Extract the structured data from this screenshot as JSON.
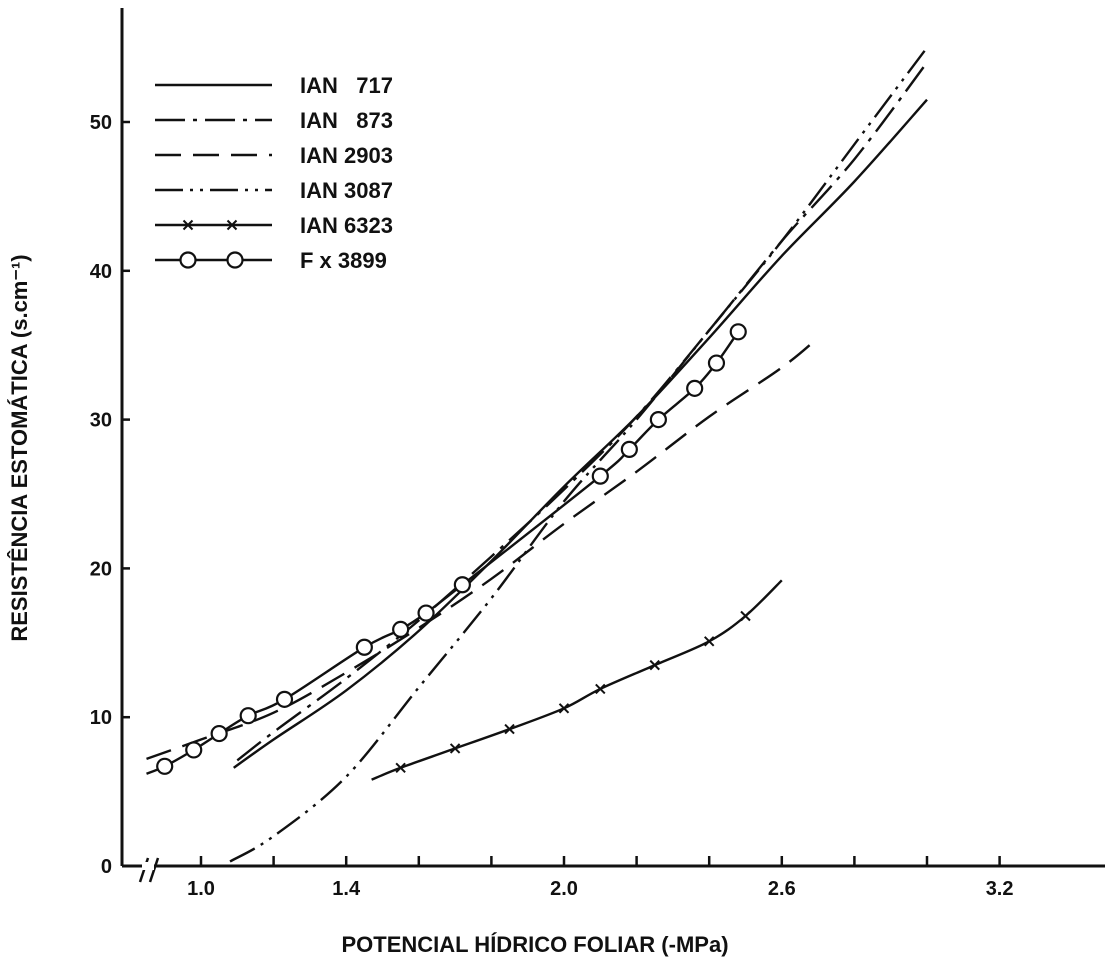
{
  "chart_data": {
    "type": "line",
    "title": "",
    "xlabel": "POTENCIAL HÍDRICO FOLIAR (-MPa)",
    "ylabel": "RESISTÊNCIA ESTOMÁTICA (s.cm⁻¹)",
    "xlim": [
      0.85,
      3.45
    ],
    "ylim": [
      0,
      58
    ],
    "x_axis_break": true,
    "xticks": [
      {
        "value": 1.0,
        "label": "1.0"
      },
      {
        "value": 1.4,
        "label": "1.4"
      },
      {
        "value": 2.0,
        "label": "2.0"
      },
      {
        "value": 2.6,
        "label": "2.6"
      },
      {
        "value": 3.2,
        "label": "3.2"
      }
    ],
    "xminor": [
      1.2,
      1.6,
      1.8,
      2.2,
      2.4,
      2.8,
      3.0
    ],
    "yticks": [
      {
        "value": 0,
        "label": "0"
      },
      {
        "value": 10,
        "label": "10"
      },
      {
        "value": 20,
        "label": "20"
      },
      {
        "value": 30,
        "label": "30"
      },
      {
        "value": 40,
        "label": "40"
      },
      {
        "value": 50,
        "label": "50"
      }
    ],
    "legend_position": "top-left",
    "series": [
      {
        "name": "IAN   717",
        "style": "solid",
        "marker": "none",
        "x": [
          1.09,
          1.2,
          1.4,
          1.6,
          1.8,
          2.0,
          2.2,
          2.4,
          2.6,
          2.8,
          3.0
        ],
        "y": [
          6.6,
          8.5,
          11.8,
          15.8,
          20.5,
          25.5,
          30.2,
          35.5,
          41,
          46,
          51.5
        ]
      },
      {
        "name": "IAN   873",
        "style": "dashdot",
        "marker": "none",
        "x": [
          1.1,
          1.2,
          1.4,
          1.6,
          1.8,
          2.0,
          2.2,
          2.4,
          2.6,
          2.8,
          3.0
        ],
        "y": [
          7.1,
          9.0,
          12.6,
          16.5,
          20.8,
          25.3,
          30.2,
          36.0,
          42.0,
          47.5,
          54
        ]
      },
      {
        "name": "IAN 2903",
        "style": "dashed",
        "marker": "none",
        "x": [
          0.85,
          1.0,
          1.2,
          1.4,
          1.6,
          1.8,
          2.0,
          2.2,
          2.4,
          2.6,
          2.7
        ],
        "y": [
          7.2,
          8.5,
          10.3,
          13.0,
          16.0,
          19.3,
          23.0,
          26.5,
          30.2,
          33.5,
          35.5
        ]
      },
      {
        "name": "IAN 3087",
        "style": "dashdotdot",
        "marker": "none",
        "x": [
          1.08,
          1.2,
          1.4,
          1.6,
          1.8,
          2.0,
          2.2,
          2.4,
          2.6,
          2.8,
          3.0
        ],
        "y": [
          0.3,
          2.0,
          6.0,
          12.0,
          18.0,
          24.5,
          30.0,
          36.0,
          42.0,
          48.5,
          55
        ]
      },
      {
        "name": "IAN 6323",
        "style": "solid",
        "marker": "x",
        "x": [
          1.47,
          1.55,
          1.7,
          1.85,
          2.0,
          2.1,
          2.25,
          2.4,
          2.5,
          2.6
        ],
        "y": [
          5.8,
          6.6,
          7.9,
          9.2,
          10.6,
          11.9,
          13.5,
          15.1,
          16.8,
          19.2
        ],
        "markers_x": [
          1.55,
          1.7,
          1.85,
          2.0,
          2.1,
          2.25,
          2.4,
          2.5
        ]
      },
      {
        "name": "F x 3899",
        "style": "solid",
        "marker": "circle",
        "x": [
          0.85,
          0.9,
          0.98,
          1.05,
          1.13,
          1.23,
          1.45,
          1.55,
          1.62,
          1.72,
          2.1,
          2.18,
          2.26,
          2.36,
          2.42,
          2.48
        ],
        "y": [
          6.2,
          6.7,
          7.8,
          8.9,
          10.1,
          11.2,
          14.7,
          15.9,
          17.0,
          18.9,
          26.2,
          28.0,
          30.0,
          32.1,
          33.8,
          35.9
        ],
        "markers_x": [
          0.9,
          0.98,
          1.05,
          1.13,
          1.23,
          1.45,
          1.55,
          1.62,
          1.72,
          2.1,
          2.18,
          2.26,
          2.36,
          2.42,
          2.48
        ]
      }
    ]
  }
}
